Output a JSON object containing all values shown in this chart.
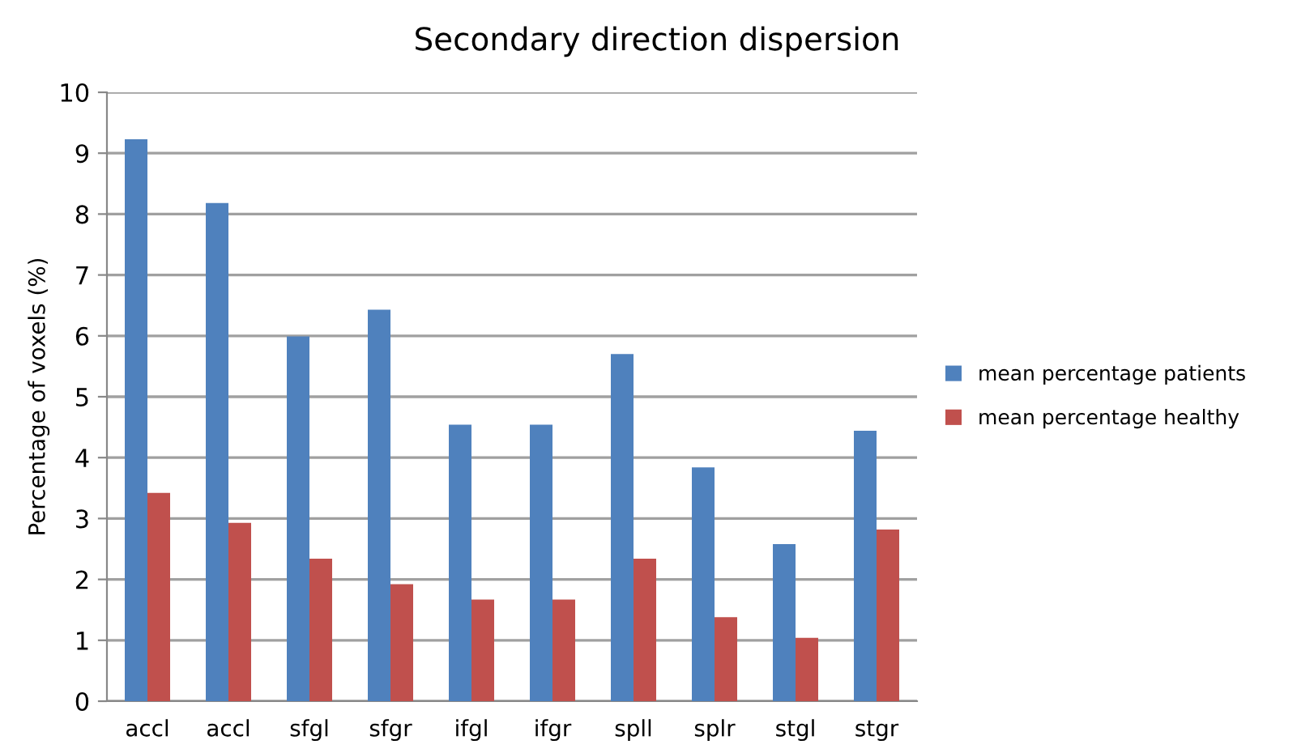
{
  "chart_data": {
    "type": "bar",
    "title": "Secondary direction dispersion",
    "ylabel": "Percentage of voxels (%)",
    "categories": [
      "accl",
      "accl",
      "sfgl",
      "sfgr",
      "ifgl",
      "ifgr",
      "spll",
      "splr",
      "stgl",
      "stgr"
    ],
    "series": [
      {
        "name": "mean percentage patients",
        "color": "#4f81bd",
        "values": [
          9.23,
          8.18,
          5.99,
          6.43,
          4.54,
          4.54,
          5.7,
          3.84,
          2.58,
          4.44
        ]
      },
      {
        "name": "mean percentage healthy",
        "color": "#c0504d",
        "values": [
          3.42,
          2.93,
          2.34,
          1.92,
          1.67,
          1.67,
          2.34,
          1.38,
          1.04,
          2.82
        ]
      }
    ],
    "ylim": [
      0,
      10
    ],
    "yticks": [
      0,
      1,
      2,
      3,
      4,
      5,
      6,
      7,
      8,
      9,
      10
    ],
    "grid": "y",
    "legend": "right"
  }
}
